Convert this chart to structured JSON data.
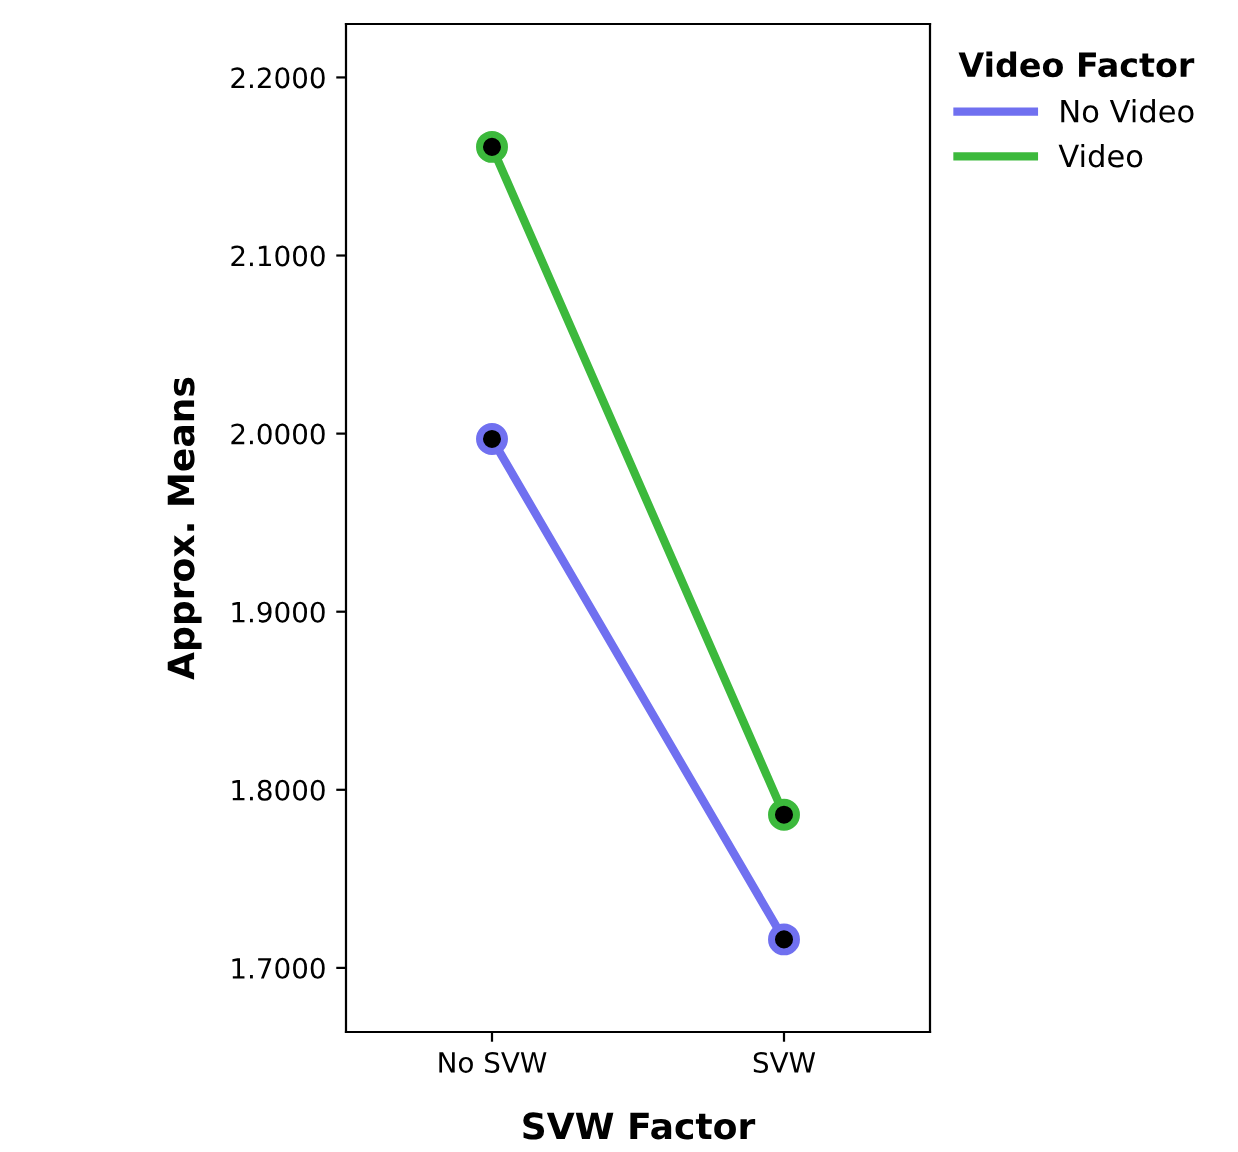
{
  "chart_data": {
    "type": "line",
    "xlabel": "SVW Factor",
    "ylabel": "Approx. Means",
    "legend_title": "Video Factor",
    "categories": [
      "No SVW",
      "SVW"
    ],
    "series": [
      {
        "name": "No Video",
        "color": "#7070f0",
        "values": [
          1.997,
          1.716
        ]
      },
      {
        "name": "Video",
        "color": "#3cb93c",
        "values": [
          2.161,
          1.786
        ]
      }
    ],
    "ylim": [
      1.664,
      2.23
    ],
    "yticks": [
      {
        "value": 1.7,
        "label": "1.7000"
      },
      {
        "value": 1.8,
        "label": "1.8000"
      },
      {
        "value": 1.9,
        "label": "1.9000"
      },
      {
        "value": 2.0,
        "label": "2.0000"
      },
      {
        "value": 2.1,
        "label": "2.1000"
      },
      {
        "value": 2.2,
        "label": "2.2000"
      }
    ],
    "marker": "circle",
    "line_style": "solid",
    "grid": false,
    "legend": "right"
  }
}
